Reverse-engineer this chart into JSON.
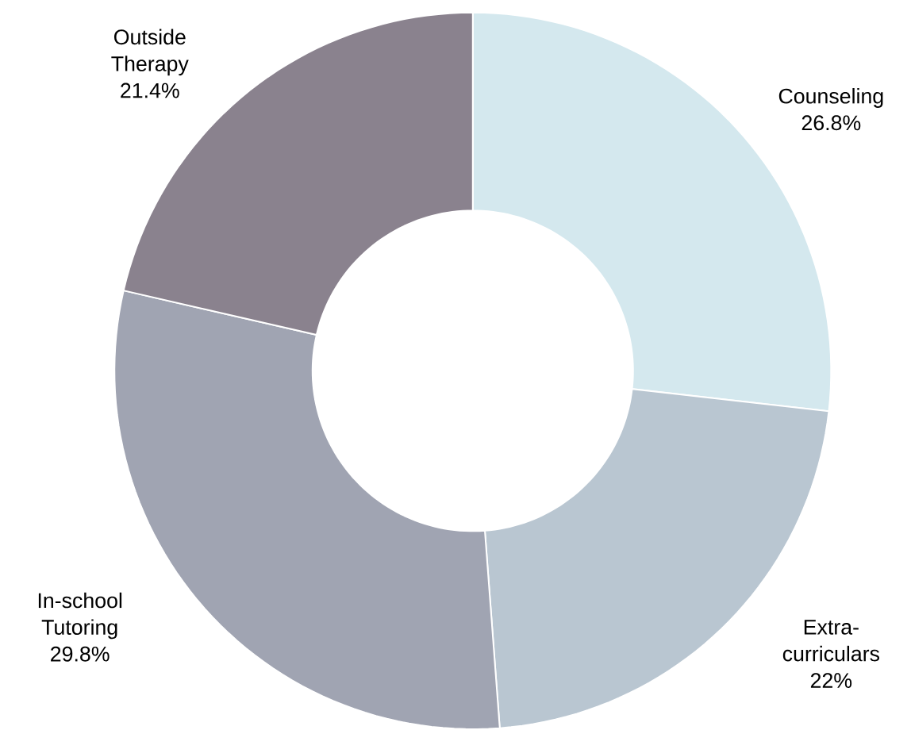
{
  "chart_data": {
    "type": "donut",
    "categories": [
      "Counseling",
      "Extra-curriculars",
      "In-school Tutoring",
      "Outside Therapy"
    ],
    "values": [
      26.8,
      22,
      29.8,
      21.4
    ],
    "value_labels": [
      "26.8%",
      "22%",
      "29.8%",
      "21.4%"
    ],
    "colors": [
      "#d4e8ee",
      "#b9c6d1",
      "#a0a4b2",
      "#8a828e"
    ]
  }
}
